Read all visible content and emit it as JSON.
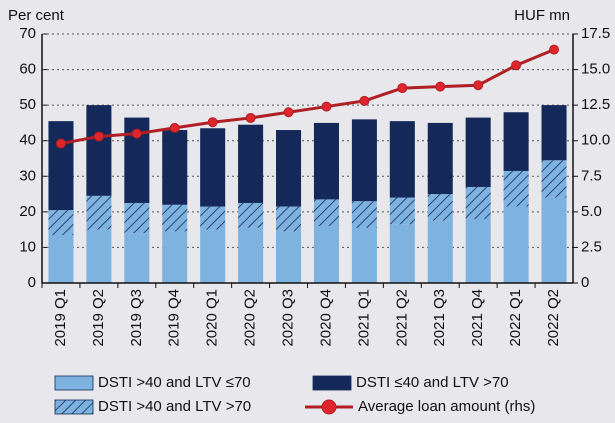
{
  "chart_data": {
    "type": "bar",
    "y_label": "Per cent",
    "y2_label": "HUF mn",
    "categories": [
      "2019 Q1",
      "2019 Q2",
      "2019 Q3",
      "2019 Q4",
      "2020 Q1",
      "2020 Q2",
      "2020 Q3",
      "2020 Q4",
      "2021 Q1",
      "2021 Q2",
      "2021 Q3",
      "2021 Q4",
      "2022 Q1",
      "2022 Q2"
    ],
    "series": [
      {
        "name": "DSTI >40 and LTV ≤70",
        "type": "bar",
        "color": "#7eb3df",
        "values": [
          13.5,
          15,
          14,
          14.5,
          15,
          15.5,
          14.5,
          16,
          15.5,
          16.5,
          17.5,
          18,
          21.5,
          24
        ]
      },
      {
        "name": "DSTI >40 and LTV >70",
        "type": "bar",
        "color": "#7eb3df",
        "hatch": true,
        "values": [
          7,
          9.5,
          8.5,
          7.5,
          6.5,
          7,
          7,
          7.5,
          7.5,
          7.5,
          7.5,
          9,
          10,
          10.5
        ]
      },
      {
        "name": "DSTI ≤40 and LTV >70",
        "type": "bar",
        "color": "#14285a",
        "values": [
          25,
          25.5,
          24,
          21,
          22,
          22,
          21.5,
          21.5,
          23,
          21.5,
          20,
          19.5,
          16.5,
          15.5
        ]
      },
      {
        "name": "Average loan amount (rhs)",
        "type": "line",
        "axis": "y2",
        "color": "#b01f24",
        "values": [
          9.8,
          10.3,
          10.5,
          10.9,
          11.3,
          11.6,
          12.0,
          12.4,
          12.8,
          13.7,
          13.8,
          13.9,
          15.3,
          16.4
        ]
      }
    ],
    "ylim": [
      0,
      70
    ],
    "yticks": [
      0,
      10,
      20,
      30,
      40,
      50,
      60,
      70
    ],
    "y2lim": [
      0,
      17.5
    ],
    "y2ticks": [
      0,
      2.5,
      {
        "value": 5,
        "label": "5.0"
      },
      7.5,
      {
        "value": 10,
        "label": "10.0"
      },
      12.5,
      {
        "value": 15,
        "label": "15.0"
      },
      17.5
    ],
    "grid": true,
    "legend": "bottom"
  }
}
